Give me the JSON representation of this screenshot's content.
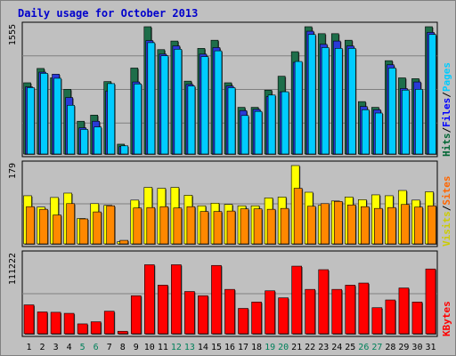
{
  "chart_data": {
    "type": "bar",
    "title": "Daily usage for October 2013",
    "categories": [
      "1",
      "2",
      "3",
      "4",
      "5",
      "6",
      "7",
      "8",
      "9",
      "10",
      "11",
      "12",
      "13",
      "14",
      "15",
      "16",
      "17",
      "18",
      "19",
      "20",
      "21",
      "22",
      "23",
      "24",
      "25",
      "26",
      "27",
      "28",
      "29",
      "30",
      "31"
    ],
    "weekend_days": [
      "5",
      "6",
      "12",
      "13",
      "19",
      "20",
      "26",
      "27"
    ],
    "panels": [
      {
        "name": "hits-files-pages",
        "max_label": "1555",
        "ymax": 1555,
        "legend": [
          {
            "text": "Hits",
            "color": "#006633"
          },
          {
            "text": "/",
            "color": "#000000"
          },
          {
            "text": "Files",
            "color": "#0000ff"
          },
          {
            "text": "/",
            "color": "#000000"
          },
          {
            "text": "Pages",
            "color": "#00ccff"
          }
        ],
        "series": [
          {
            "name": "Hits",
            "color": "#1e6e4a",
            "values": [
              870,
              1045,
              930,
              790,
              400,
              475,
              885,
              120,
              1050,
              1555,
              1275,
              1380,
              890,
              1290,
              1390,
              870,
              570,
              570,
              780,
              950,
              1250,
              1555,
              1470,
              1470,
              1390,
              640,
              570,
              1140,
              930,
              920,
              1555
            ]
          },
          {
            "name": "Files",
            "color": "#2a3ad8",
            "values": [
              820,
              1000,
              975,
              690,
              320,
              400,
              770,
              90,
              880,
              1385,
              1220,
              1320,
              850,
              1220,
              1300,
              830,
              530,
              545,
              700,
              760,
              1120,
              1500,
              1340,
              1380,
              1320,
              580,
              540,
              1090,
              800,
              880,
              1485
            ]
          },
          {
            "name": "Pages",
            "color": "#00ccff",
            "values": [
              810,
              985,
              925,
              595,
              300,
              330,
              860,
              100,
              855,
              1360,
              1200,
              1280,
              830,
              1190,
              1260,
              810,
              470,
              520,
              720,
              760,
              1130,
              1460,
              1300,
              1290,
              1290,
              540,
              500,
              1050,
              780,
              790,
              1460
            ]
          }
        ]
      },
      {
        "name": "visits-sites",
        "max_label": "179",
        "ymax": 179,
        "legend": [
          {
            "text": "Visits",
            "color": "#cccc00"
          },
          {
            "text": "/",
            "color": "#000000"
          },
          {
            "text": "Sites",
            "color": "#ff6600"
          }
        ],
        "series": [
          {
            "name": "Visits",
            "color": "#ffff00",
            "values": [
              110,
              84,
              106,
              116,
              58,
              92,
              88,
              5,
              100,
              129,
              127,
              129,
              111,
              87,
              93,
              90,
              87,
              87,
              105,
              107,
              179,
              118,
              88,
              98,
              107,
              101,
              112,
              110,
              122,
              100,
              119
            ]
          },
          {
            "name": "Sites",
            "color": "#ff8800",
            "values": [
              85,
              79,
              66,
              92,
              57,
              73,
              87,
              8,
              82,
              83,
              85,
              82,
              85,
              74,
              74,
              75,
              80,
              80,
              79,
              81,
              127,
              86,
              92,
              97,
              89,
              85,
              81,
              83,
              90,
              84,
              87
            ]
          }
        ]
      },
      {
        "name": "kbytes",
        "max_label": "111222",
        "ymax": 111222,
        "legend": [
          {
            "text": "KBytes",
            "color": "#ff0000"
          }
        ],
        "series": [
          {
            "name": "KBytes",
            "color": "#ff0000",
            "values": [
              41000,
              31000,
              30500,
              29000,
              14000,
              17000,
              32000,
              3500,
              54000,
              98000,
              69000,
              98000,
              60000,
              54000,
              97000,
              63000,
              36000,
              45000,
              61000,
              51000,
              96000,
              63000,
              91000,
              63000,
              69000,
              72000,
              37000,
              48000,
              65000,
              45000,
              92000
            ]
          }
        ]
      }
    ]
  }
}
